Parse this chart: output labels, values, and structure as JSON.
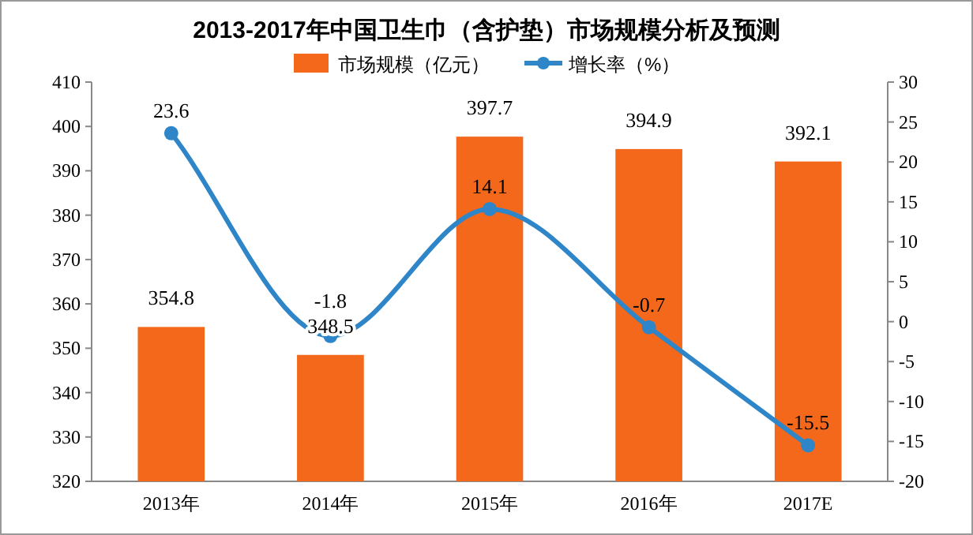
{
  "chart_data": {
    "type": "bar",
    "title": "2013-2017年中国卫生巾（含护垫）市场规模分析及预测",
    "categories": [
      "2013年",
      "2014年",
      "2015年",
      "2016年",
      "2017E"
    ],
    "series": [
      {
        "name": "市场规模（亿元）",
        "color": "#f4681c",
        "values": [
          354.8,
          348.5,
          397.7,
          394.9,
          392.1
        ]
      },
      {
        "name": "增长率（%）",
        "type": "line",
        "axis": "y2",
        "color": "#2e86c8",
        "marker": "circle",
        "values": [
          23.6,
          -1.8,
          14.1,
          -0.7,
          -15.5
        ]
      }
    ],
    "ylim": [
      320,
      410
    ],
    "yticks": [
      320,
      330,
      340,
      350,
      360,
      370,
      380,
      390,
      400,
      410
    ],
    "y2lim": [
      -20,
      30
    ],
    "y2ticks": [
      -20,
      -15,
      -10,
      -5,
      0,
      5,
      10,
      15,
      20,
      25,
      30
    ],
    "data_labels": true,
    "legend": "top",
    "grid": false
  }
}
